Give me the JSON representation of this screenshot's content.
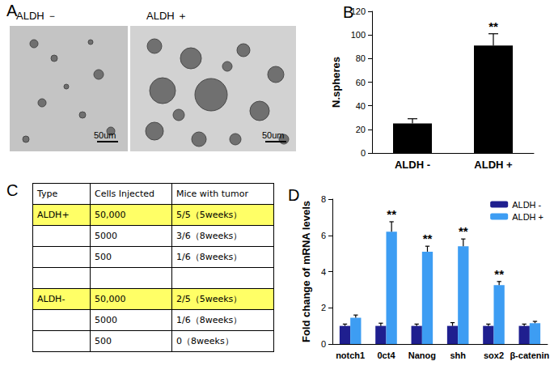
{
  "panel_labels": [
    "A",
    "B",
    "C",
    "D"
  ],
  "panel_a": {
    "images": [
      {
        "label": "ALDH －",
        "scale_bar": "50um"
      },
      {
        "label": "ALDH ＋",
        "scale_bar": "50um"
      }
    ]
  },
  "chart_data": [
    {
      "type": "bar",
      "ylabel": "N.spheres",
      "categories": [
        "ALDH -",
        "ALDH +"
      ],
      "values": [
        25,
        91
      ],
      "errors": [
        4,
        10
      ],
      "color": "#000000",
      "ylim": [
        0,
        120
      ],
      "yticks": [
        0,
        20,
        40,
        60,
        80,
        100,
        120
      ],
      "annotations": [
        {
          "category": "ALDH +",
          "text": "**"
        }
      ]
    },
    {
      "type": "bar",
      "ylabel": "Fold change of mRNA levels",
      "categories": [
        "notch1",
        "0ct4",
        "Nanog",
        "shh",
        "sox2",
        "β-catenin"
      ],
      "series": [
        {
          "name": "ALDH -",
          "color": "#1f1f8f",
          "values": [
            1,
            1,
            1,
            1,
            1,
            1
          ],
          "errors": [
            0.1,
            0.15,
            0.1,
            0.18,
            0.1,
            0.1
          ]
        },
        {
          "name": "ALDH +",
          "color": "#3d9df3",
          "values": [
            1.45,
            6.2,
            5.1,
            5.4,
            3.25,
            1.15
          ],
          "errors": [
            0.15,
            0.55,
            0.3,
            0.4,
            0.2,
            0.1
          ]
        }
      ],
      "ylim": [
        0,
        8
      ],
      "yticks": [
        0,
        2,
        4,
        6,
        8
      ],
      "legend": "upper right",
      "annotations": [
        {
          "series": "ALDH +",
          "category": "0ct4",
          "text": "**"
        },
        {
          "series": "ALDH +",
          "category": "Nanog",
          "text": "**"
        },
        {
          "series": "ALDH +",
          "category": "shh",
          "text": "**"
        },
        {
          "series": "ALDH +",
          "category": "sox2",
          "text": "**"
        }
      ]
    }
  ],
  "table": {
    "header": [
      "Type",
      "Cells Injected",
      "Mice with tumor"
    ],
    "rows": [
      {
        "cells": [
          "ALDH+",
          "50,000",
          "5/5（5weeks）"
        ],
        "highlight": true
      },
      {
        "cells": [
          null,
          "5000",
          "3/6（8weeks）"
        ]
      },
      {
        "cells": [
          null,
          "500",
          "1/6（8weeks）"
        ]
      },
      {
        "cells": [
          null,
          null,
          null
        ]
      },
      {
        "cells": [
          "ALDH-",
          "50,000",
          "2/5（5weeks）"
        ],
        "highlight": true
      },
      {
        "cells": [
          null,
          "5000",
          "1/6（8weeks）"
        ]
      },
      {
        "cells": [
          null,
          "500",
          "0（8weeks）"
        ]
      }
    ]
  }
}
